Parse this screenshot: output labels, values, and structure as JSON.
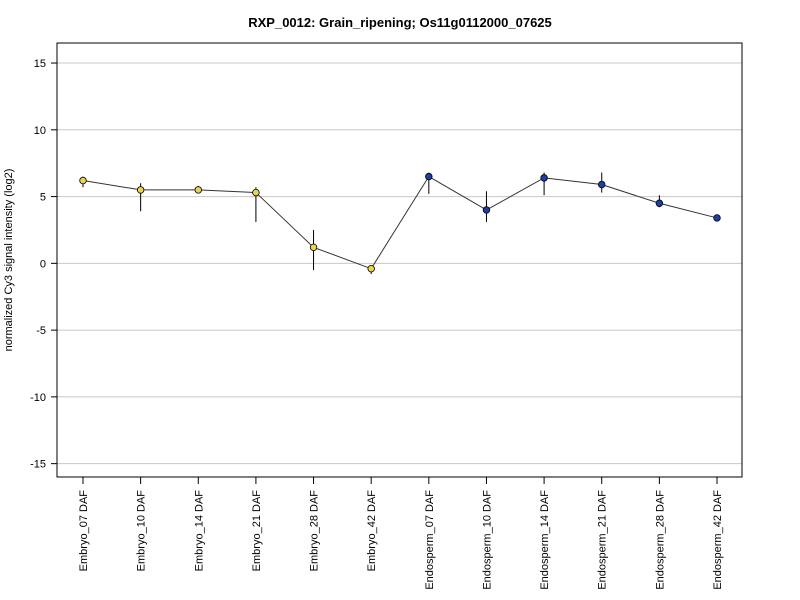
{
  "chart_data": {
    "type": "line",
    "title": "RXP_0012: Grain_ripening; Os11g0112000_07625",
    "xlabel": "",
    "ylabel": "normalized Cy3 signal intensity (log2)",
    "ylim": [
      -16,
      16.5
    ],
    "yticks": [
      15,
      10,
      5,
      0,
      -5,
      -10,
      -15
    ],
    "grid": true,
    "categories": [
      "Embryo_07 DAF",
      "Embryo_10 DAF",
      "Embryo_14 DAF",
      "Embryo_21 DAF",
      "Embryo_28 DAF",
      "Embryo_42 DAF",
      "Endosperm_07 DAF",
      "Endosperm_10 DAF",
      "Endosperm_14 DAF",
      "Endosperm_21 DAF",
      "Endosperm_28 DAF",
      "Endosperm_42 DAF"
    ],
    "series": [
      {
        "values": [
          6.2,
          5.5,
          5.5,
          5.3,
          1.2,
          -0.4,
          6.5,
          4.0,
          6.4,
          5.9,
          4.5,
          3.4
        ],
        "error_low": [
          5.7,
          3.9,
          5.3,
          3.1,
          -0.5,
          -0.8,
          5.2,
          3.1,
          5.1,
          5.3,
          4.2,
          3.3
        ],
        "error_high": [
          6.5,
          6.0,
          5.8,
          5.7,
          2.5,
          -0.2,
          6.8,
          5.4,
          6.8,
          6.8,
          5.1,
          3.5
        ],
        "point_colors": [
          "#e8d44d",
          "#e8d44d",
          "#e8d44d",
          "#e8d44d",
          "#e8d44d",
          "#e8d44d",
          "#1c3fa6",
          "#1c3fa6",
          "#1c3fa6",
          "#1c3fa6",
          "#1c3fa6",
          "#1c3fa6"
        ]
      }
    ],
    "colors": {
      "line": "#333333",
      "grid": "#c8c8c8",
      "embryo": "#e8d44d",
      "endosperm": "#1c3fa6"
    }
  }
}
